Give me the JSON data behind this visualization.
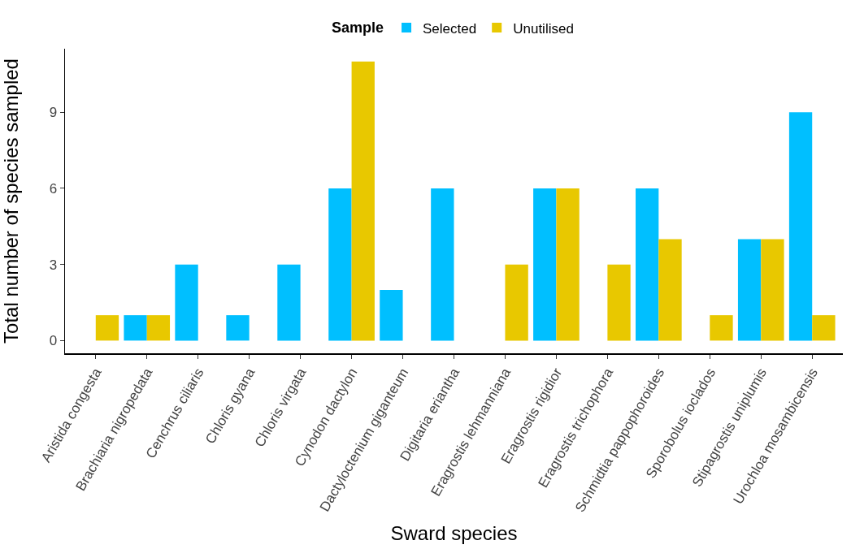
{
  "chart_data": {
    "type": "bar",
    "xlabel": "Sward species",
    "ylabel": "Total number of species sampled",
    "legend_title": "Sample",
    "legend": "top",
    "categories": [
      "Aristida congesta",
      "Brachiaria nigropedata",
      "Cenchrus ciliaris",
      "Chloris gyana",
      "Chloris virgata",
      "Cynodon dactylon",
      "Dactyloctenium giganteum",
      "Digitaria eriantha",
      "Eragrostis lehmanniana",
      "Eragrostis rigidior",
      "Eragrostis trichophora",
      "Schmidtia pappophoroides",
      "Sporobolus ioclados",
      "Stipagrostis uniplumis",
      "Urochloa mosambicensis"
    ],
    "series": [
      {
        "name": "Selected",
        "color": "#00bfff",
        "values": [
          null,
          1,
          3,
          1,
          3,
          6,
          2,
          6,
          null,
          6,
          null,
          6,
          null,
          4,
          9
        ]
      },
      {
        "name": "Unutilised",
        "color": "#e8c800",
        "values": [
          1,
          1,
          null,
          null,
          null,
          11,
          null,
          null,
          3,
          6,
          3,
          4,
          1,
          4,
          1
        ]
      }
    ],
    "ylim": [
      -0.5,
      11.5
    ],
    "yticks": [
      0,
      3,
      6,
      9
    ],
    "grid": false
  }
}
